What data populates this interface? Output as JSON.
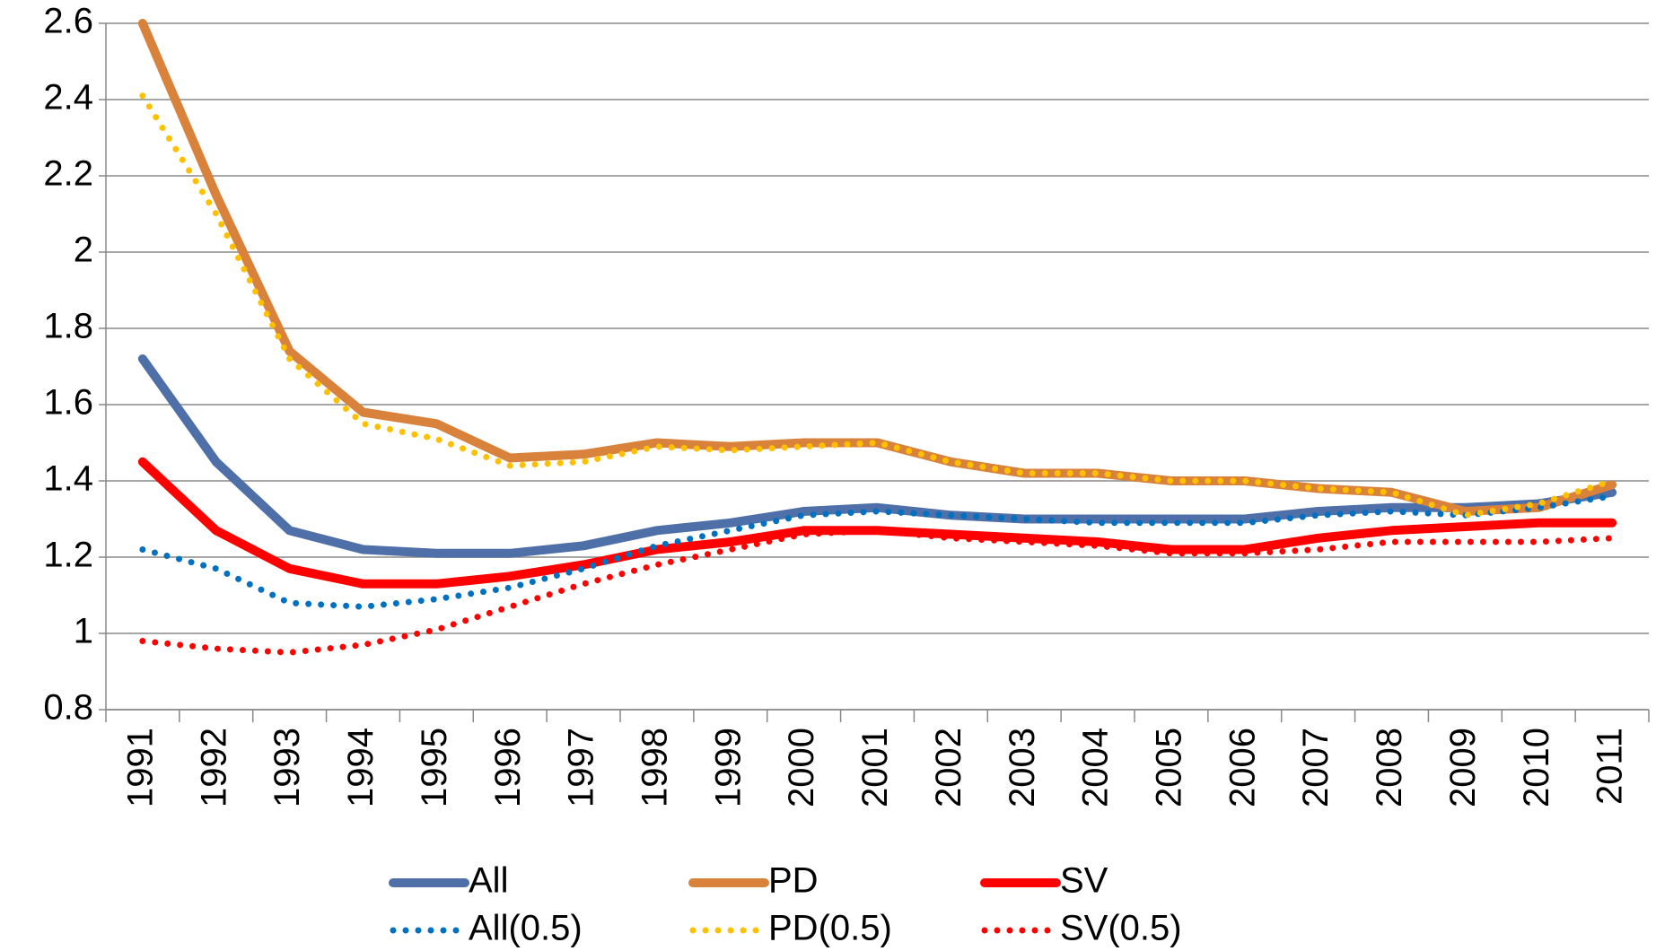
{
  "chart_data": {
    "type": "line",
    "categories": [
      "1991",
      "1992",
      "1993",
      "1994",
      "1995",
      "1996",
      "1997",
      "1998",
      "1999",
      "2000",
      "2001",
      "2002",
      "2003",
      "2004",
      "2005",
      "2006",
      "2007",
      "2008",
      "2009",
      "2010",
      "2011"
    ],
    "series": [
      {
        "name": "All",
        "color": "#4f6fa8",
        "style": "solid",
        "values": [
          1.72,
          1.45,
          1.27,
          1.22,
          1.21,
          1.21,
          1.23,
          1.27,
          1.29,
          1.32,
          1.33,
          1.31,
          1.3,
          1.3,
          1.3,
          1.3,
          1.32,
          1.33,
          1.33,
          1.34,
          1.37
        ]
      },
      {
        "name": "PD",
        "color": "#d9823b",
        "style": "solid",
        "values": [
          2.6,
          2.15,
          1.74,
          1.58,
          1.55,
          1.46,
          1.47,
          1.5,
          1.49,
          1.5,
          1.5,
          1.45,
          1.42,
          1.42,
          1.4,
          1.4,
          1.38,
          1.37,
          1.32,
          1.33,
          1.39
        ]
      },
      {
        "name": "SV",
        "color": "#ff0000",
        "style": "solid",
        "values": [
          1.45,
          1.27,
          1.17,
          1.13,
          1.13,
          1.15,
          1.18,
          1.22,
          1.24,
          1.27,
          1.27,
          1.26,
          1.25,
          1.24,
          1.22,
          1.22,
          1.25,
          1.27,
          1.28,
          1.29,
          1.29
        ]
      },
      {
        "name": "All(0.5)",
        "color": "#0070c0",
        "style": "dotted",
        "values": [
          1.22,
          1.17,
          1.08,
          1.07,
          1.09,
          1.12,
          1.17,
          1.23,
          1.27,
          1.31,
          1.32,
          1.31,
          1.3,
          1.29,
          1.29,
          1.29,
          1.31,
          1.32,
          1.31,
          1.33,
          1.36
        ]
      },
      {
        "name": "PD(0.5)",
        "color": "#ffc000",
        "style": "dotted",
        "values": [
          2.41,
          2.1,
          1.72,
          1.55,
          1.51,
          1.44,
          1.45,
          1.49,
          1.48,
          1.49,
          1.5,
          1.45,
          1.42,
          1.42,
          1.4,
          1.4,
          1.38,
          1.37,
          1.31,
          1.34,
          1.4
        ]
      },
      {
        "name": "SV(0.5)",
        "color": "#ff0000",
        "style": "dotted",
        "values": [
          0.98,
          0.96,
          0.95,
          0.97,
          1.01,
          1.07,
          1.13,
          1.18,
          1.22,
          1.26,
          1.27,
          1.25,
          1.24,
          1.23,
          1.21,
          1.21,
          1.22,
          1.24,
          1.24,
          1.24,
          1.25
        ]
      }
    ],
    "ylim": [
      0.8,
      2.6
    ],
    "yticks": [
      0.8,
      1,
      1.2,
      1.4,
      1.6,
      1.8,
      2,
      2.2,
      2.4,
      2.6
    ],
    "grid": true,
    "legend": "bottom"
  }
}
